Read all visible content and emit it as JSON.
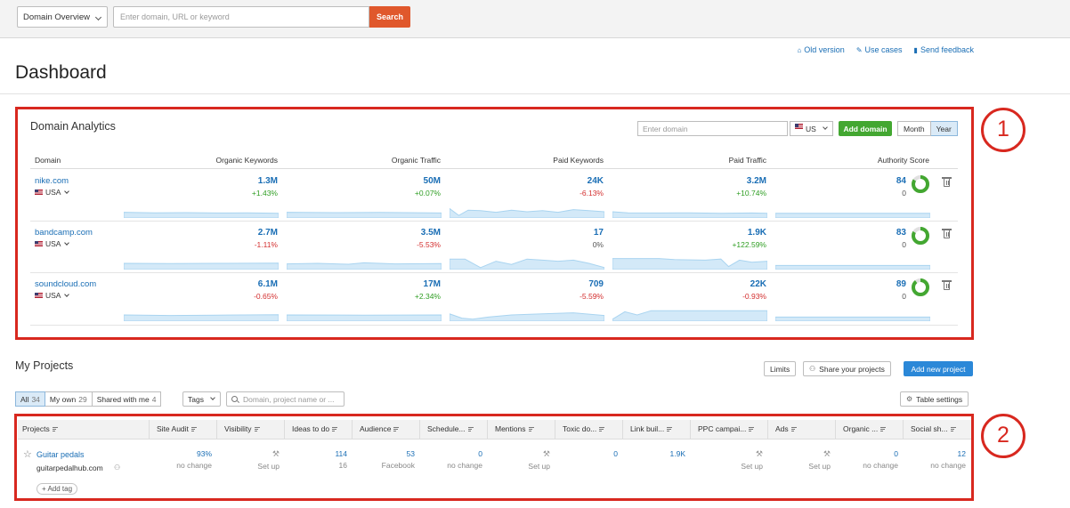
{
  "topbar": {
    "select_label": "Domain Overview",
    "search_placeholder": "Enter domain, URL or keyword",
    "search_label": "Search"
  },
  "header_links": [
    {
      "icon": "house-icon",
      "label": "Old version"
    },
    {
      "icon": "megaphone-icon",
      "label": "Use cases"
    },
    {
      "icon": "chat-bubble-icon",
      "label": "Send feedback"
    }
  ],
  "page_title": "Dashboard",
  "annotations": [
    "1",
    "2"
  ],
  "domain_analytics": {
    "title": "Domain Analytics",
    "input_placeholder": "Enter domain",
    "database": "US",
    "add_domain_label": "Add domain",
    "period_options": [
      "Month",
      "Year"
    ],
    "period_selected": "Year",
    "columns": [
      "Domain",
      "Organic Keywords",
      "Organic Traffic",
      "Paid Keywords",
      "Paid Traffic",
      "Authority Score"
    ],
    "rows": [
      {
        "domain": "nike.com",
        "db": "USA",
        "organic_keywords": {
          "value": "1.3M",
          "change": "+1.43%",
          "trend": "pos"
        },
        "organic_traffic": {
          "value": "50M",
          "change": "+0.07%",
          "trend": "pos"
        },
        "paid_keywords": {
          "value": "24K",
          "change": "-6.13%",
          "trend": "neg"
        },
        "paid_traffic": {
          "value": "3.2M",
          "change": "+10.74%",
          "trend": "pos"
        },
        "authority_score": {
          "value": "84",
          "change": "0",
          "score": 84
        }
      },
      {
        "domain": "bandcamp.com",
        "db": "USA",
        "organic_keywords": {
          "value": "2.7M",
          "change": "-1.11%",
          "trend": "neg"
        },
        "organic_traffic": {
          "value": "3.5M",
          "change": "-5.53%",
          "trend": "neg"
        },
        "paid_keywords": {
          "value": "17",
          "change": "0%",
          "trend": "neu"
        },
        "paid_traffic": {
          "value": "1.9K",
          "change": "+122.59%",
          "trend": "pos"
        },
        "authority_score": {
          "value": "83",
          "change": "0",
          "score": 83
        }
      },
      {
        "domain": "soundcloud.com",
        "db": "USA",
        "organic_keywords": {
          "value": "6.1M",
          "change": "-0.65%",
          "trend": "neg"
        },
        "organic_traffic": {
          "value": "17M",
          "change": "+2.34%",
          "trend": "pos"
        },
        "paid_keywords": {
          "value": "709",
          "change": "-5.59%",
          "trend": "neg"
        },
        "paid_traffic": {
          "value": "22K",
          "change": "-0.93%",
          "trend": "neg"
        },
        "authority_score": {
          "value": "89",
          "change": "0",
          "score": 89
        }
      }
    ]
  },
  "my_projects": {
    "title": "My Projects",
    "limits_label": "Limits",
    "share_label": "Share your projects",
    "add_label": "Add new project",
    "filters": [
      {
        "label": "All",
        "count": "34"
      },
      {
        "label": "My own",
        "count": "29"
      },
      {
        "label": "Shared with me",
        "count": "4"
      }
    ],
    "tags_label": "Tags",
    "search_placeholder": "Domain, project name or ...",
    "table_settings_label": "Table settings",
    "columns": [
      "Projects",
      "Site Audit",
      "Visibility",
      "Ideas to do",
      "Audience",
      "Schedule...",
      "Mentions",
      "Toxic do...",
      "Link buil...",
      "PPC campai...",
      "Ads",
      "Organic ...",
      "Social sh..."
    ],
    "project": {
      "name": "Guitar pedals",
      "domain": "guitarpedalhub.com",
      "add_tag_label": "+ Add tag",
      "cells": [
        {
          "value": "93%",
          "sub": "no change"
        },
        {
          "value": "",
          "sub": "Set up",
          "setup": true
        },
        {
          "value": "114",
          "sub": "16"
        },
        {
          "value": "53",
          "sub": "Facebook"
        },
        {
          "value": "0",
          "sub": "no change"
        },
        {
          "value": "",
          "sub": "Set up",
          "setup": true
        },
        {
          "value": "0",
          "sub": ""
        },
        {
          "value": "1.9K",
          "sub": ""
        },
        {
          "value": "",
          "sub": "Set up",
          "setup": true
        },
        {
          "value": "",
          "sub": "Set up",
          "setup": true
        },
        {
          "value": "0",
          "sub": "no change"
        },
        {
          "value": "12",
          "sub": "no change"
        }
      ]
    }
  },
  "colors": {
    "search": "#e0582c",
    "add_domain": "#43a731",
    "add_project": "#2b88d8",
    "highlight": "#d8281f",
    "link": "#1a6eb5",
    "spark": "#a9d4f0"
  }
}
